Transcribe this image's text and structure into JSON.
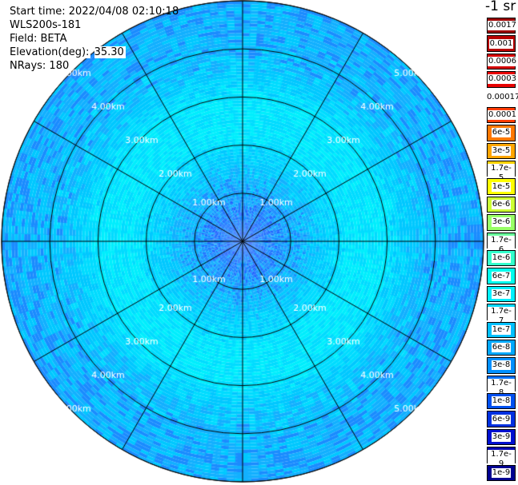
{
  "info": {
    "start_time": "Start time: 2022/04/08 02:10:18",
    "station": "WLS200s-181",
    "field": "Field: BETA",
    "elevation_label": "Elevation(deg):",
    "elevation_value": "35.30",
    "nrays": "NRays: 180"
  },
  "colorbar": {
    "unit_label": "-1 sr",
    "labels": [
      "0.0017",
      "0.001",
      "0.0006",
      "0.0003",
      "0.00017",
      "0.0001",
      "6e-5",
      "3e-5",
      "1.7e-5",
      "1e-5",
      "6e-6",
      "3e-6",
      "1.7e-6",
      "1e-6",
      "6e-7",
      "3e-7",
      "1.7e-7",
      "1e-7",
      "6e-8",
      "3e-8",
      "1.7e-8",
      "1e-8",
      "6e-9",
      "3e-9",
      "1.7e-9",
      "1e-9"
    ],
    "colors": [
      "#9b0000",
      "#b80000",
      "#d40000",
      "#e80000",
      "#ffffff",
      "#ff3c00",
      "#ff7800",
      "#ffa500",
      "#ffd200",
      "#ffff00",
      "#ccff33",
      "#99ff66",
      "#66ff99",
      "#33ffcc",
      "#00ffee",
      "#00f0ff",
      "#00d8ff",
      "#00c0ff",
      "#00a8ff",
      "#0090ff",
      "#0070ff",
      "#0050f0",
      "#0030e0",
      "#0010d0",
      "#0000b0",
      "#000090"
    ]
  },
  "chart_data": {
    "type": "heatmap",
    "projection": "polar PPI",
    "range_rings_km": [
      1,
      2,
      3,
      4,
      5
    ],
    "range_ring_labels": [
      "1.00km",
      "2.00km",
      "3.00km",
      "4.00km",
      "5.00km"
    ],
    "spoke_angles_deg": [
      0,
      30,
      60,
      90,
      120,
      150,
      180,
      210,
      240,
      270,
      300,
      330
    ],
    "max_range_km": 5.0,
    "field": "BETA",
    "dominant_values_by_range": [
      {
        "range_km": 0.5,
        "value": "1.7e-8"
      },
      {
        "range_km": 1.5,
        "value": "3e-8"
      },
      {
        "range_km": 2.5,
        "value": "1.7e-7"
      },
      {
        "range_km": 3.5,
        "value": "6e-8"
      },
      {
        "range_km": 4.5,
        "value": "1.7e-8"
      }
    ]
  }
}
